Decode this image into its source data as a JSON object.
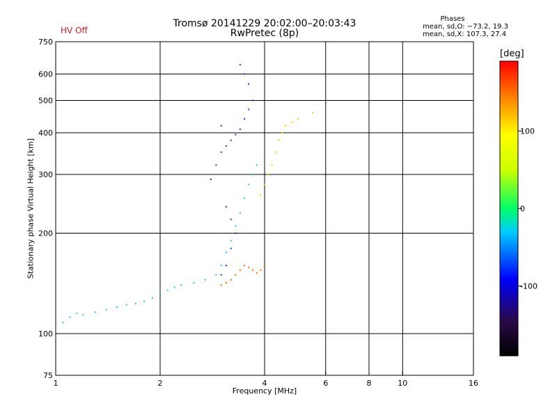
{
  "header": {
    "title": "Tromsø 20141229 20:02:00–20:03:43",
    "subtitle": "RwPretec (8p)",
    "status": "HV Off"
  },
  "phase_info": {
    "title": "Phases",
    "o_line": "mean, sd,O: −73.2, 19.3",
    "x_line": "mean, sd,X: 107.3, 27.4"
  },
  "colorbar": {
    "label": "[deg]",
    "ticks": [
      100,
      0,
      -100
    ],
    "range": [
      -190,
      190
    ]
  },
  "chart_data": {
    "type": "scatter",
    "title": "Tromsø 20141229 20:02:00–20:03:43",
    "subtitle": "RwPretec (8p)",
    "xlabel": "Frequency [MHz]",
    "ylabel": "Stationary phase Virtual Height [km]",
    "xscale": "log",
    "yscale": "log",
    "xlim": [
      1,
      16
    ],
    "ylim": [
      75,
      750
    ],
    "x_ticks": [
      1,
      2,
      4,
      6,
      8,
      10,
      16
    ],
    "y_ticks": [
      75,
      100,
      200,
      300,
      400,
      500,
      600,
      750
    ],
    "x_gridlines": [
      2,
      4,
      6,
      8,
      10
    ],
    "y_gridlines": [
      100,
      200,
      300,
      400,
      500,
      600
    ],
    "grid": true,
    "series": [
      {
        "points": [
          [
            1.05,
            108
          ],
          [
            1.1,
            112
          ],
          [
            1.15,
            115
          ],
          [
            1.2,
            114
          ],
          [
            1.3,
            116
          ],
          [
            1.4,
            118
          ],
          [
            1.5,
            120
          ],
          [
            1.6,
            122
          ],
          [
            1.7,
            123
          ],
          [
            1.8,
            125
          ],
          [
            1.9,
            128
          ],
          [
            2.0,
            132
          ],
          [
            2.1,
            135
          ],
          [
            2.2,
            138
          ],
          [
            2.3,
            140
          ],
          [
            2.5,
            142
          ],
          [
            2.7,
            145
          ],
          [
            2.9,
            150
          ],
          [
            3.0,
            160
          ],
          [
            3.1,
            175
          ],
          [
            3.2,
            190
          ],
          [
            3.3,
            210
          ],
          [
            3.4,
            230
          ],
          [
            3.5,
            255
          ],
          [
            3.6,
            280
          ],
          [
            3.7,
            300
          ],
          [
            3.8,
            320
          ]
        ],
        "color": "#33bbee"
      },
      {
        "points": [
          [
            2.8,
            290
          ],
          [
            2.9,
            320
          ],
          [
            3.0,
            350
          ],
          [
            3.1,
            365
          ],
          [
            3.2,
            380
          ],
          [
            3.3,
            395
          ],
          [
            3.4,
            410
          ],
          [
            3.5,
            440
          ],
          [
            3.6,
            470
          ],
          [
            3.7,
            500
          ],
          [
            3.6,
            560
          ],
          [
            3.5,
            600
          ],
          [
            3.4,
            640
          ],
          [
            3.0,
            420
          ],
          [
            3.1,
            240
          ],
          [
            3.2,
            220
          ],
          [
            3.3,
            200
          ],
          [
            3.2,
            180
          ],
          [
            3.1,
            160
          ],
          [
            3.0,
            150
          ]
        ],
        "color": "#1133dd"
      },
      {
        "points": [
          [
            3.0,
            140
          ],
          [
            3.1,
            142
          ],
          [
            3.2,
            145
          ],
          [
            3.3,
            150
          ],
          [
            3.4,
            155
          ],
          [
            3.5,
            160
          ],
          [
            3.6,
            158
          ],
          [
            3.7,
            155
          ],
          [
            3.8,
            152
          ],
          [
            3.9,
            155
          ],
          [
            4.0,
            160
          ]
        ],
        "color": "#ff6600"
      },
      {
        "points": [
          [
            3.9,
            260
          ],
          [
            4.0,
            280
          ],
          [
            4.1,
            300
          ],
          [
            4.2,
            320
          ],
          [
            4.3,
            350
          ],
          [
            4.4,
            380
          ],
          [
            4.5,
            400
          ],
          [
            4.6,
            420
          ],
          [
            4.8,
            430
          ],
          [
            5.0,
            440
          ],
          [
            5.5,
            460
          ]
        ],
        "color": "#ffcc00"
      }
    ]
  }
}
